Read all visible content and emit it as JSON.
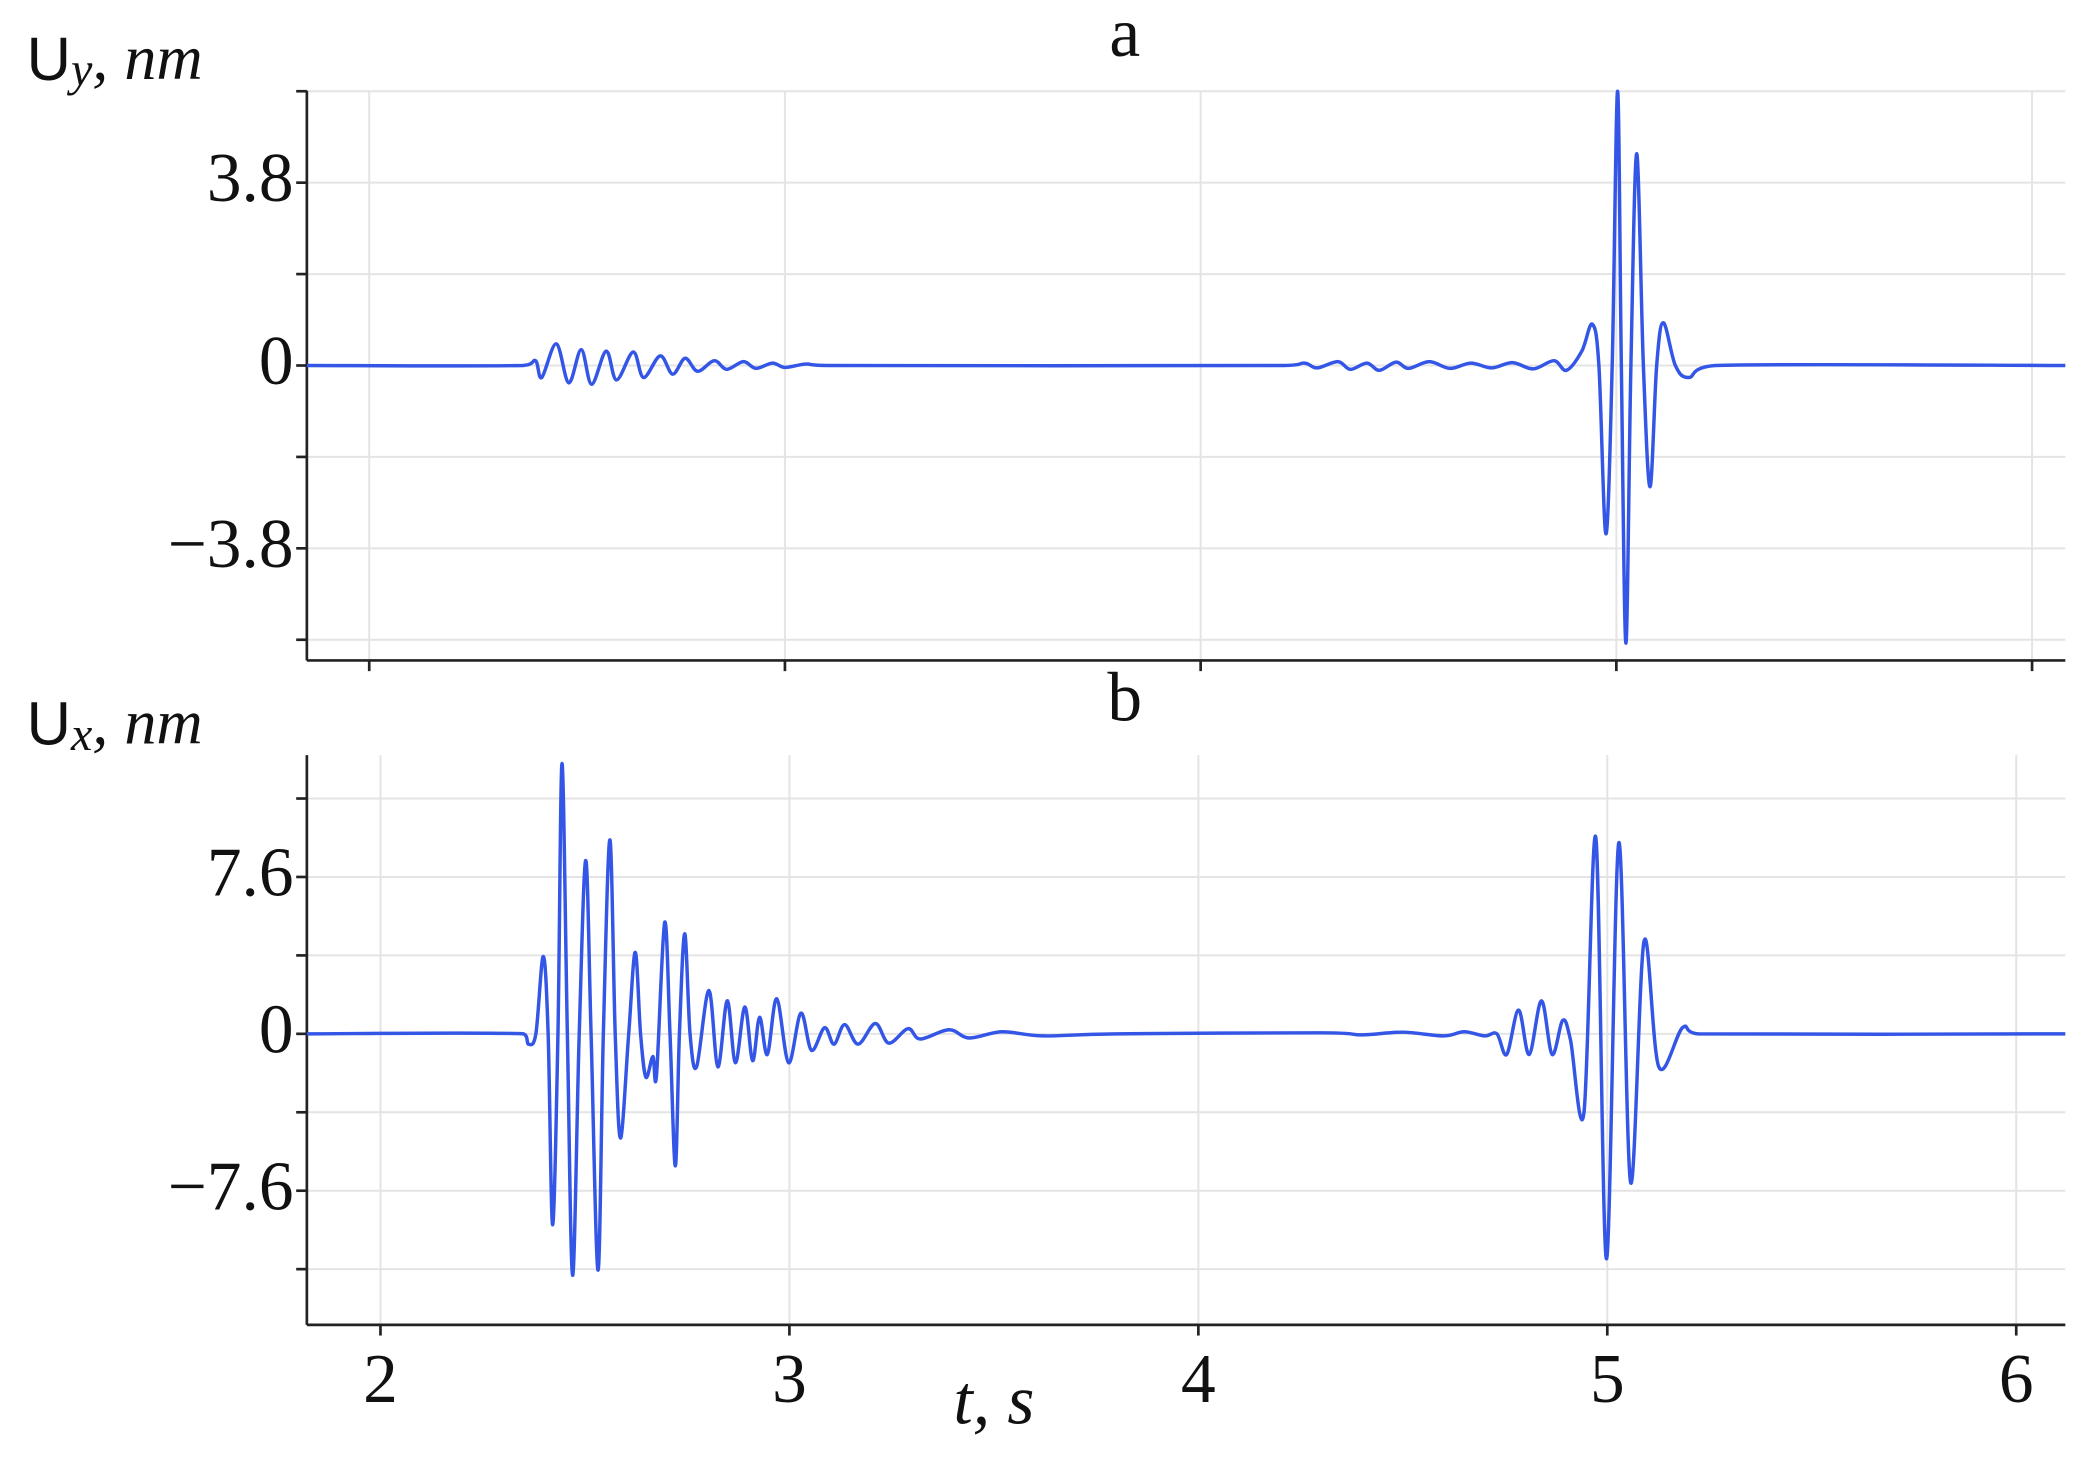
{
  "chart_data": [
    {
      "type": "line",
      "title": "a",
      "ylabel": {
        "symbol": "U",
        "subscript": "y",
        "unit": ", nm"
      },
      "xlim": [
        1.85,
        6.08
      ],
      "xticks": [
        2,
        3,
        4,
        5,
        6
      ],
      "xticklabels": false,
      "ylim": [
        -6.13,
        5.71
      ],
      "yticks": [
        {
          "value": -3.8,
          "label": "−3.8"
        },
        0,
        3.8
      ],
      "yminorticks": [
        -5.7,
        -1.9,
        1.9,
        5.7
      ],
      "grid": true,
      "color": "#3456e6",
      "x": [
        1.85,
        2.37,
        2.4,
        2.415,
        2.45,
        2.48,
        2.51,
        2.535,
        2.57,
        2.595,
        2.635,
        2.66,
        2.7,
        2.73,
        2.76,
        2.79,
        2.83,
        2.86,
        2.9,
        2.93,
        2.97,
        3.0,
        3.05,
        3.1,
        4.2,
        4.25,
        4.28,
        4.33,
        4.36,
        4.4,
        4.43,
        4.47,
        4.5,
        4.55,
        4.6,
        4.65,
        4.7,
        4.75,
        4.8,
        4.85,
        4.88,
        4.917,
        4.942,
        4.958,
        4.975,
        4.99,
        5.003,
        5.012,
        5.023,
        5.035,
        5.049,
        5.065,
        5.081,
        5.097,
        5.113,
        5.142,
        5.174,
        5.238,
        6.08
      ],
      "values": [
        0,
        0,
        0.1,
        -0.25,
        0.45,
        -0.36,
        0.33,
        -0.39,
        0.3,
        -0.3,
        0.28,
        -0.25,
        0.2,
        -0.18,
        0.15,
        -0.12,
        0.1,
        -0.08,
        0.08,
        -0.06,
        0.05,
        -0.04,
        0.03,
        0,
        0,
        0.05,
        -0.05,
        0.08,
        -0.08,
        0.05,
        -0.1,
        0.07,
        -0.06,
        0.08,
        -0.06,
        0.05,
        -0.05,
        0.06,
        -0.07,
        0.1,
        -0.1,
        0.3,
        0.86,
        0,
        -3.5,
        0,
        5.7,
        0,
        -5.77,
        0,
        4.4,
        0,
        -2.52,
        0,
        0.89,
        0,
        -0.25,
        0,
        0
      ]
    },
    {
      "type": "line",
      "title": "b",
      "ylabel": {
        "symbol": "U",
        "subscript": "x",
        "unit": ", nm"
      },
      "xlabel": "t, s",
      "xlim": [
        1.82,
        6.12
      ],
      "xticks": [
        2,
        3,
        4,
        5,
        6
      ],
      "xticklabels": true,
      "ylim": [
        -14.1,
        13.5
      ],
      "yticks": [
        {
          "value": -7.6,
          "label": "−7.6"
        },
        0,
        7.6
      ],
      "yminorticks": [
        -11.4,
        -3.8,
        3.8,
        11.4
      ],
      "grid": true,
      "color": "#3456e6",
      "x": [
        1.82,
        2.35,
        2.362,
        2.38,
        2.398,
        2.41,
        2.421,
        2.434,
        2.444,
        2.457,
        2.47,
        2.486,
        2.502,
        2.515,
        2.532,
        2.545,
        2.561,
        2.574,
        2.587,
        2.607,
        2.623,
        2.636,
        2.649,
        2.666,
        2.675,
        2.695,
        2.708,
        2.721,
        2.731,
        2.744,
        2.757,
        2.773,
        2.803,
        2.825,
        2.848,
        2.868,
        2.891,
        2.91,
        2.927,
        2.946,
        2.969,
        2.998,
        3.028,
        3.054,
        3.086,
        3.109,
        3.135,
        3.168,
        3.21,
        3.243,
        3.29,
        3.32,
        3.39,
        3.44,
        3.52,
        3.62,
        3.8,
        4.3,
        4.4,
        4.5,
        4.6,
        4.65,
        4.7,
        4.73,
        4.754,
        4.783,
        4.809,
        4.839,
        4.865,
        4.891,
        4.91,
        4.943,
        4.972,
        4.998,
        5.028,
        5.057,
        5.09,
        5.126,
        5.184,
        5.223,
        6.12
      ],
      "values": [
        0,
        0,
        -0.5,
        0,
        3.75,
        0,
        -9.25,
        0,
        13.1,
        0,
        -11.7,
        0,
        8.4,
        0,
        -11.45,
        0,
        9.4,
        0,
        -5.05,
        0,
        3.95,
        0,
        -2.1,
        -1.1,
        -2.0,
        5.4,
        0,
        -6.4,
        0,
        4.85,
        0,
        -1.6,
        2.1,
        -1.6,
        1.6,
        -1.4,
        1.3,
        -1.3,
        0.8,
        -1.0,
        1.7,
        -1.4,
        1.0,
        -0.8,
        0.3,
        -0.5,
        0.45,
        -0.5,
        0.5,
        -0.45,
        0.25,
        -0.25,
        0.2,
        -0.2,
        0.1,
        -0.1,
        0,
        0.05,
        -0.05,
        0.08,
        -0.1,
        0.1,
        -0.1,
        0,
        -1.0,
        1.15,
        -1.0,
        1.6,
        -1.0,
        0.65,
        -0.3,
        -3.8,
        9.5,
        -10.9,
        9.25,
        -7.2,
        4.5,
        -1.6,
        0.3,
        0,
        0
      ]
    }
  ]
}
